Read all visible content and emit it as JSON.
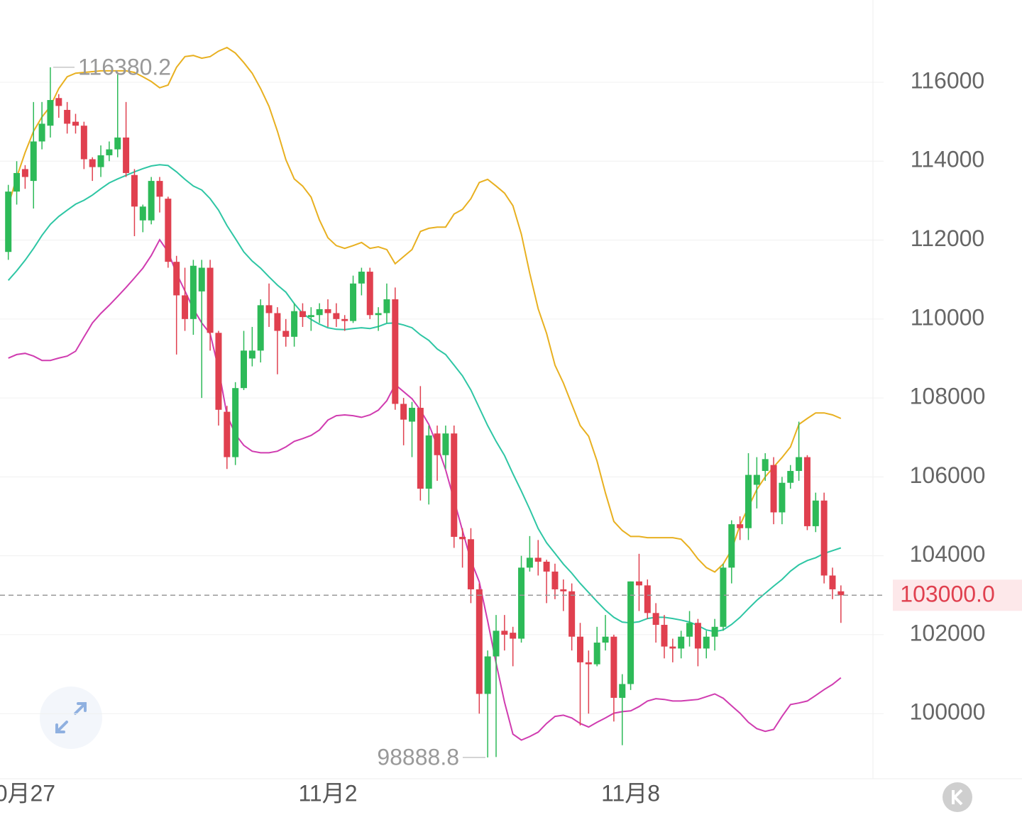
{
  "chart_data": {
    "type": "candlestick",
    "categories": [
      null,
      null,
      "0月27",
      null,
      null,
      null,
      null,
      null,
      null,
      null,
      null,
      null,
      null,
      null,
      null,
      null,
      null,
      null,
      null,
      null,
      null,
      null,
      null,
      null,
      null,
      null,
      null,
      null,
      null,
      null,
      null,
      null,
      null,
      null,
      null,
      null,
      null,
      null,
      "11月2",
      null,
      null,
      null,
      null,
      null,
      null,
      null,
      null,
      null,
      null,
      null,
      null,
      null,
      null,
      null,
      null,
      null,
      null,
      null,
      null,
      null,
      null,
      null,
      null,
      null,
      null,
      null,
      null,
      null,
      null,
      null,
      null,
      null,
      null,
      null,
      "11月8",
      null,
      null,
      null,
      null,
      null,
      null,
      null,
      null,
      null,
      null,
      null,
      null,
      null,
      null,
      null,
      null,
      null,
      null,
      null,
      null,
      null,
      null,
      null,
      null,
      null
    ],
    "ohlc": [
      [
        111700,
        113400,
        111500,
        113230
      ],
      [
        113230,
        114000,
        112900,
        113700
      ],
      [
        113800,
        113900,
        113300,
        113600
      ],
      [
        113500,
        115500,
        112800,
        114500
      ],
      [
        114500,
        115500,
        114300,
        114950
      ],
      [
        114900,
        116380.2,
        114600,
        115550
      ],
      [
        115600,
        115700,
        115100,
        115400
      ],
      [
        115300,
        115500,
        114700,
        114950
      ],
      [
        115000,
        115200,
        114700,
        114900
      ],
      [
        114900,
        115000,
        113800,
        114050
      ],
      [
        114050,
        114100,
        113500,
        113850
      ],
      [
        113850,
        114400,
        113600,
        114150
      ],
      [
        114150,
        114500,
        114000,
        114300
      ],
      [
        114300,
        116200,
        114100,
        114600
      ],
      [
        114600,
        115500,
        113600,
        113700
      ],
      [
        113650,
        113800,
        112100,
        112850
      ],
      [
        112500,
        112900,
        112200,
        112850
      ],
      [
        112500,
        113600,
        112400,
        113500
      ],
      [
        113500,
        113600,
        112700,
        113100
      ],
      [
        113050,
        113100,
        111300,
        111450
      ],
      [
        111450,
        111600,
        109100,
        110600
      ],
      [
        110600,
        111300,
        109700,
        110000
      ],
      [
        110000,
        111500,
        109600,
        111350
      ],
      [
        110700,
        111500,
        108000,
        111300
      ],
      [
        111300,
        111500,
        109200,
        109650
      ],
      [
        109650,
        109700,
        107300,
        107700
      ],
      [
        107650,
        107800,
        106200,
        106500
      ],
      [
        106500,
        108400,
        106300,
        108250
      ],
      [
        108250,
        109700,
        108200,
        109200
      ],
      [
        109000,
        109800,
        108800,
        109200
      ],
      [
        109200,
        110500,
        108900,
        110350
      ],
      [
        110350,
        110900,
        109800,
        110150
      ],
      [
        110150,
        110300,
        108600,
        109700
      ],
      [
        109700,
        110000,
        109300,
        109550
      ],
      [
        109550,
        110400,
        109300,
        110200
      ],
      [
        110200,
        110400,
        109800,
        110050
      ],
      [
        110050,
        110300,
        109700,
        110100
      ],
      [
        110100,
        110400,
        109900,
        110250
      ],
      [
        110250,
        110500,
        109800,
        110150
      ],
      [
        110150,
        110400,
        109800,
        110000
      ],
      [
        110000,
        110100,
        109700,
        109950
      ],
      [
        109950,
        111100,
        109900,
        110900
      ],
      [
        110900,
        111300,
        110600,
        111200
      ],
      [
        111200,
        111300,
        110000,
        110100
      ],
      [
        110100,
        110300,
        109700,
        110150
      ],
      [
        110150,
        110900,
        109900,
        110500
      ],
      [
        110500,
        110800,
        107700,
        107850
      ],
      [
        107850,
        108000,
        106800,
        107450
      ],
      [
        107400,
        107900,
        106500,
        107750
      ],
      [
        107750,
        108300,
        105400,
        105700
      ],
      [
        105700,
        107300,
        105300,
        107050
      ],
      [
        107100,
        107300,
        105900,
        106550
      ],
      [
        106550,
        107300,
        106200,
        107100
      ],
      [
        107100,
        107300,
        104200,
        104480
      ],
      [
        104480,
        104700,
        103700,
        104420
      ],
      [
        104420,
        104700,
        102800,
        103150
      ],
      [
        103150,
        103300,
        100000,
        100500
      ],
      [
        100500,
        101600,
        98888.8,
        101450
      ],
      [
        101450,
        102500,
        98900,
        102100
      ],
      [
        102100,
        102500,
        101600,
        102000
      ],
      [
        102050,
        102200,
        101200,
        101900
      ],
      [
        101900,
        104000,
        101800,
        103700
      ],
      [
        103700,
        104500,
        103600,
        103950
      ],
      [
        103950,
        104400,
        103500,
        103850
      ],
      [
        103850,
        103900,
        102800,
        103600
      ],
      [
        103600,
        103800,
        102900,
        103150
      ],
      [
        103150,
        103400,
        102600,
        103100
      ],
      [
        103100,
        103300,
        101600,
        101950
      ],
      [
        101950,
        102300,
        99700,
        101300
      ],
      [
        101300,
        101600,
        100000,
        101250
      ],
      [
        101250,
        102200,
        101200,
        101800
      ],
      [
        101800,
        102500,
        101600,
        101950
      ],
      [
        101950,
        102000,
        99800,
        100400
      ],
      [
        100400,
        101000,
        99200,
        100750
      ],
      [
        100750,
        103350,
        100600,
        103350
      ],
      [
        103350,
        104050,
        102600,
        103250
      ],
      [
        103250,
        103400,
        102400,
        102550
      ],
      [
        102550,
        102800,
        101800,
        102250
      ],
      [
        102250,
        102500,
        101400,
        101700
      ],
      [
        101700,
        101900,
        101300,
        101650
      ],
      [
        101650,
        102100,
        101400,
        101950
      ],
      [
        101950,
        102600,
        101700,
        102300
      ],
      [
        102300,
        102400,
        101200,
        101650
      ],
      [
        101650,
        102100,
        101400,
        101950
      ],
      [
        101950,
        102400,
        101600,
        102200
      ],
      [
        102200,
        103800,
        102100,
        103700
      ],
      [
        103700,
        104900,
        103300,
        104800
      ],
      [
        104800,
        105000,
        104400,
        104700
      ],
      [
        104700,
        106600,
        104400,
        106050
      ],
      [
        105800,
        106500,
        105200,
        106050
      ],
      [
        106150,
        106600,
        105900,
        106450
      ],
      [
        106300,
        106500,
        104800,
        105100
      ],
      [
        105100,
        106000,
        104800,
        105850
      ],
      [
        105850,
        106300,
        105700,
        106150
      ],
      [
        106150,
        107400,
        105900,
        106500
      ],
      [
        106500,
        106550,
        104650,
        104750
      ],
      [
        104750,
        105600,
        104600,
        105400
      ],
      [
        105400,
        105600,
        103300,
        103500
      ],
      [
        103500,
        103700,
        102900,
        103150
      ],
      [
        103100,
        103250,
        102300,
        103000
      ]
    ],
    "upper": [
      112870,
      113590,
      114220,
      114760,
      115120,
      115390,
      115840,
      116140,
      116230,
      116250,
      116270,
      116290,
      116290,
      116290,
      116290,
      116250,
      116140,
      116020,
      115860,
      115930,
      116380,
      116650,
      116680,
      116610,
      116650,
      116790,
      116880,
      116740,
      116500,
      116230,
      115840,
      115390,
      114760,
      114040,
      113550,
      113370,
      113090,
      112510,
      112060,
      111860,
      111790,
      111860,
      111940,
      111790,
      111830,
      111760,
      111400,
      111580,
      111760,
      112220,
      112300,
      112330,
      112330,
      112660,
      112780,
      113050,
      113460,
      113540,
      113370,
      113190,
      112870,
      112150,
      111160,
      110260,
      109640,
      108830,
      108380,
      107840,
      107300,
      107030,
      106400,
      105590,
      104870,
      104640,
      104490,
      104490,
      104460,
      104460,
      104460,
      104460,
      104420,
      104200,
      103920,
      103700,
      103590,
      103790,
      104150,
      104780,
      105230,
      105680,
      106000,
      106250,
      106490,
      106760,
      107330,
      107480,
      107620,
      107620,
      107570,
      107480
    ],
    "middle": [
      110980,
      111220,
      111490,
      111790,
      112120,
      112400,
      112600,
      112760,
      112910,
      113010,
      113140,
      113300,
      113450,
      113550,
      113640,
      113730,
      113810,
      113880,
      113910,
      113890,
      113730,
      113540,
      113370,
      113270,
      113050,
      112760,
      112370,
      112040,
      111700,
      111470,
      111290,
      111070,
      110860,
      110680,
      110390,
      110140,
      109990,
      109870,
      109780,
      109740,
      109730,
      109760,
      109780,
      109760,
      109810,
      109890,
      109900,
      109850,
      109780,
      109600,
      109460,
      109240,
      109100,
      108830,
      108560,
      108200,
      107750,
      107300,
      106900,
      106540,
      106080,
      105640,
      105180,
      104690,
      104330,
      104060,
      103790,
      103560,
      103300,
      103070,
      102840,
      102620,
      102440,
      102320,
      102300,
      102330,
      102410,
      102440,
      102440,
      102410,
      102370,
      102320,
      102230,
      102120,
      102080,
      102120,
      102260,
      102440,
      102660,
      102870,
      103050,
      103230,
      103400,
      103610,
      103770,
      103880,
      103950,
      104060,
      104130,
      104200
    ],
    "lower": [
      109010,
      109100,
      109130,
      109060,
      108950,
      108950,
      109010,
      109060,
      109185,
      109545,
      109900,
      110140,
      110350,
      110570,
      110800,
      111040,
      111290,
      111610,
      112010,
      111700,
      111160,
      110710,
      110260,
      109900,
      109630,
      108740,
      107570,
      107080,
      106800,
      106650,
      106610,
      106610,
      106650,
      106760,
      106900,
      106970,
      107050,
      107190,
      107440,
      107550,
      107570,
      107550,
      107510,
      107570,
      107690,
      107930,
      108340,
      108160,
      107980,
      107690,
      107330,
      106790,
      106180,
      105410,
      104640,
      103880,
      103340,
      102350,
      101280,
      100290,
      99480,
      99330,
      99420,
      99530,
      99750,
      99930,
      99960,
      99890,
      99750,
      99660,
      99780,
      99890,
      100010,
      100050,
      100070,
      100180,
      100320,
      100380,
      100360,
      100320,
      100320,
      100340,
      100360,
      100430,
      100500,
      100390,
      100200,
      100010,
      99780,
      99620,
      99550,
      99600,
      99930,
      100230,
      100270,
      100320,
      100460,
      100610,
      100740,
      100910
    ],
    "up_color": "#2dba58",
    "down_color": "#e0404f",
    "band_colors": {
      "upper": "#e8b020",
      "middle": "#2ec6a4",
      "lower": "#d03cb0"
    },
    "ylim": [
      98350,
      118085
    ],
    "yticks": [
      100000,
      102000,
      104000,
      106000,
      108000,
      110000,
      112000,
      114000,
      116000
    ],
    "grid": true,
    "high_mark": 116380.2,
    "low_mark": 98888.8,
    "last_price": {
      "value": 103000,
      "label": "103000.0"
    }
  }
}
